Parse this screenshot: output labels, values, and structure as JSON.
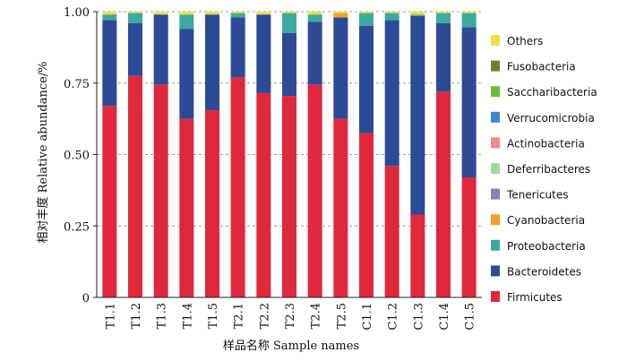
{
  "chart_data": {
    "type": "bar",
    "stacked": true,
    "normalized": true,
    "xlabel": "样品名称  Sample names",
    "ylabel": "相对丰度  Relative abundance/%",
    "ylim": [
      0,
      1
    ],
    "yticks": [
      "0",
      "0.25",
      "0.50",
      "0.75",
      "1.00"
    ],
    "ytick_values": [
      0,
      0.25,
      0.5,
      0.75,
      1.0
    ],
    "grid": "horizontal dashed",
    "legend_position": "right",
    "categories": [
      "T1.1",
      "T1.2",
      "T1.3",
      "T1.4",
      "T1.5",
      "T2.1",
      "T2.2",
      "T2.3",
      "T2.4",
      "T2.5",
      "C1.1",
      "C1.2",
      "C1.3",
      "C1.4",
      "C1.5"
    ],
    "series": [
      {
        "name": "Firmicutes",
        "color": "#e0283c",
        "values": [
          0.67,
          0.775,
          0.745,
          0.625,
          0.655,
          0.77,
          0.715,
          0.705,
          0.745,
          0.625,
          0.575,
          0.46,
          0.29,
          0.72,
          0.42
        ]
      },
      {
        "name": "Bacteroidetes",
        "color": "#2d4a96",
        "values": [
          0.3,
          0.185,
          0.245,
          0.315,
          0.335,
          0.21,
          0.275,
          0.22,
          0.22,
          0.355,
          0.375,
          0.51,
          0.695,
          0.24,
          0.525
        ]
      },
      {
        "name": "Proteobacteria",
        "color": "#3daaa0",
        "values": [
          0.02,
          0.035,
          0.0,
          0.05,
          0.0,
          0.015,
          0.0,
          0.07,
          0.025,
          0.0,
          0.045,
          0.025,
          0.005,
          0.035,
          0.05
        ]
      },
      {
        "name": "Cyanobacteria",
        "color": "#f0a02a",
        "values": [
          0.0,
          0.0,
          0.0,
          0.0,
          0.0,
          0.0,
          0.0,
          0.0,
          0.0,
          0.015,
          0.0,
          0.0,
          0.0,
          0.0,
          0.0
        ]
      },
      {
        "name": "Tenericutes",
        "color": "#8c7fb5",
        "values": [
          0,
          0,
          0,
          0,
          0,
          0,
          0,
          0,
          0,
          0,
          0,
          0,
          0,
          0,
          0
        ]
      },
      {
        "name": "Deferribacteres",
        "color": "#a6d6a0",
        "values": [
          0,
          0,
          0,
          0,
          0,
          0,
          0,
          0,
          0,
          0,
          0,
          0,
          0,
          0,
          0
        ]
      },
      {
        "name": "Actinobacteria",
        "color": "#ec8a8a",
        "values": [
          0,
          0,
          0,
          0,
          0,
          0,
          0,
          0,
          0,
          0,
          0,
          0,
          0,
          0,
          0
        ]
      },
      {
        "name": "Verrucomicrobia",
        "color": "#3d88cc",
        "values": [
          0,
          0,
          0,
          0,
          0,
          0,
          0,
          0,
          0,
          0,
          0,
          0,
          0,
          0,
          0
        ]
      },
      {
        "name": "Saccharibacteria",
        "color": "#6cbc3c",
        "values": [
          0,
          0,
          0,
          0,
          0,
          0,
          0,
          0,
          0,
          0,
          0,
          0,
          0,
          0,
          0
        ]
      },
      {
        "name": "Fusobacteria",
        "color": "#7a7a2c",
        "values": [
          0,
          0,
          0,
          0,
          0,
          0,
          0,
          0,
          0,
          0,
          0,
          0,
          0,
          0,
          0
        ]
      },
      {
        "name": "Others",
        "color": "#ece04a",
        "values": [
          0.01,
          0.005,
          0.01,
          0.01,
          0.01,
          0.005,
          0.01,
          0.005,
          0.01,
          0.005,
          0.005,
          0.005,
          0.01,
          0.005,
          0.005
        ]
      }
    ],
    "legend_order": [
      "Others",
      "Fusobacteria",
      "Saccharibacteria",
      "Verrucomicrobia",
      "Actinobacteria",
      "Deferribacteres",
      "Tenericutes",
      "Cyanobacteria",
      "Proteobacteria",
      "Bacteroidetes",
      "Firmicutes"
    ]
  }
}
